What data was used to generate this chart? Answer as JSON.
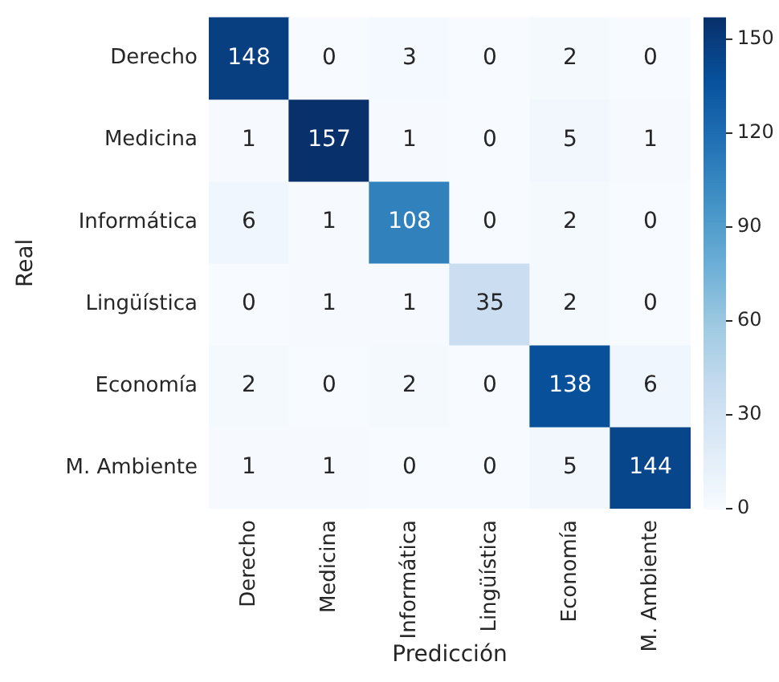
{
  "chart_data": {
    "type": "heatmap",
    "xlabel": "Predicción",
    "ylabel": "Real",
    "categories": [
      "Derecho",
      "Medicina",
      "Informática",
      "Lingüística",
      "Economía",
      "M. Ambiente"
    ],
    "y_categories": [
      "Derecho",
      "Medicina",
      "Informática",
      "Lingüística",
      "Economía",
      "M. Ambiente"
    ],
    "cells": [
      [
        148,
        0,
        3,
        0,
        2,
        0
      ],
      [
        1,
        157,
        1,
        0,
        5,
        1
      ],
      [
        6,
        1,
        108,
        0,
        2,
        0
      ],
      [
        0,
        1,
        1,
        35,
        2,
        0
      ],
      [
        2,
        0,
        2,
        0,
        138,
        6
      ],
      [
        1,
        1,
        0,
        0,
        5,
        144
      ]
    ],
    "data_labels": true,
    "clim": [
      0,
      157
    ],
    "cticks": [
      0,
      30,
      60,
      90,
      120,
      150
    ],
    "grid": false,
    "legend": false
  }
}
